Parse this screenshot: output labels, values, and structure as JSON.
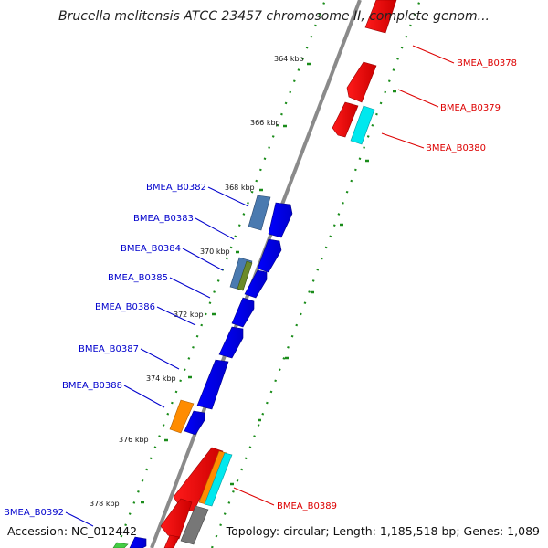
{
  "map": {
    "title": "Brucella melitensis ATCC 23457 chromosome II, complete genom...",
    "accession": "Accession: NC_012442",
    "topology": "Topology: circular; Length: 1,185,518 bp; Genes: 1,089",
    "ticks": [
      "364 kbp",
      "366 kbp",
      "368 kbp",
      "370 kbp",
      "372 kbp",
      "374 kbp",
      "376 kbp",
      "378 kbp"
    ],
    "genes_forward": [
      "BMEA_B0382",
      "BMEA_B0383",
      "BMEA_B0384",
      "BMEA_B0385",
      "BMEA_B0386",
      "BMEA_B0387",
      "BMEA_B0388",
      "BMEA_B0392"
    ],
    "genes_reverse": [
      "BMEA_B0378",
      "BMEA_B0379",
      "BMEA_B0380",
      "BMEA_B0389"
    ]
  },
  "colors": {
    "forward_cds": "#0000ee",
    "reverse_cds": "#ee0000",
    "cyan": "#00e8ee",
    "orange": "#ff8c00",
    "steel": "#4a7ab0",
    "olive": "#6b8a2a",
    "grey": "#777777",
    "tick_dots": "#1a8c1a",
    "forward_label": "#0000cc",
    "reverse_label": "#dd0000"
  }
}
